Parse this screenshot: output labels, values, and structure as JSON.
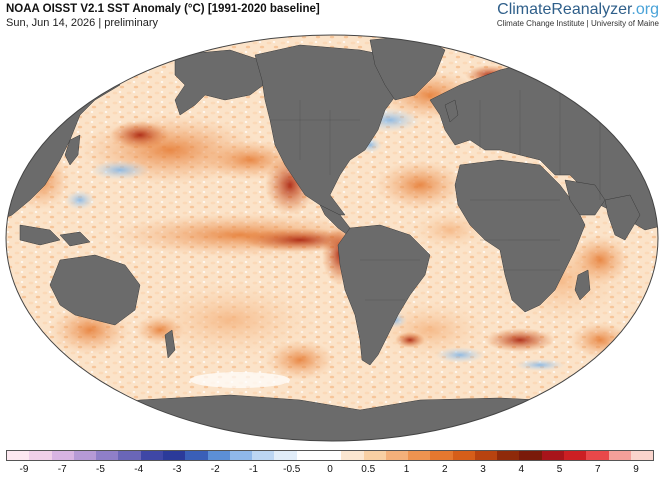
{
  "header": {
    "title": "NOAA OISST V2.1 SST Anomaly (°C) [1991-2020 baseline]",
    "subtitle": "Sun, Jun 14, 2026 | preliminary"
  },
  "brand": {
    "name_main": "ClimateReanalyzer",
    "name_tld": ".org",
    "affiliation": "Climate Change Institute | University of Maine"
  },
  "colors": {
    "land": "#6b6b6b",
    "ocean_neutral": "#ffffff",
    "warm_light": "#fbd9b6",
    "warm_mid": "#f2a05a",
    "warm_strong": "#e06a1c",
    "warm_extreme": "#a8200c",
    "cool_light": "#c6e0f5",
    "cool_mid": "#7fb3e6"
  },
  "colorbar": {
    "colors": [
      "#fde8f0",
      "#f0cfe8",
      "#d8b4e2",
      "#b69ad6",
      "#8f7fc8",
      "#6a66b8",
      "#3f47a6",
      "#2b3a9a",
      "#3a5fb8",
      "#5c8fd6",
      "#8fb8ea",
      "#bcd6f3",
      "#e1edf9",
      "#ffffff",
      "#ffffff",
      "#fbe6d0",
      "#f8cfa3",
      "#f4b07a",
      "#ee9350",
      "#e5782f",
      "#d65e19",
      "#b8430f",
      "#8f2a0a",
      "#7a1a0a",
      "#a8141a",
      "#cc1f23",
      "#e8484a",
      "#f4a09a",
      "#fad4cc"
    ],
    "ticks": [
      "-9",
      "-7",
      "-5",
      "-4",
      "-3",
      "-2",
      "-1",
      "-0.5",
      "0",
      "0.5",
      "1",
      "2",
      "3",
      "4",
      "5",
      "7",
      "9"
    ]
  }
}
